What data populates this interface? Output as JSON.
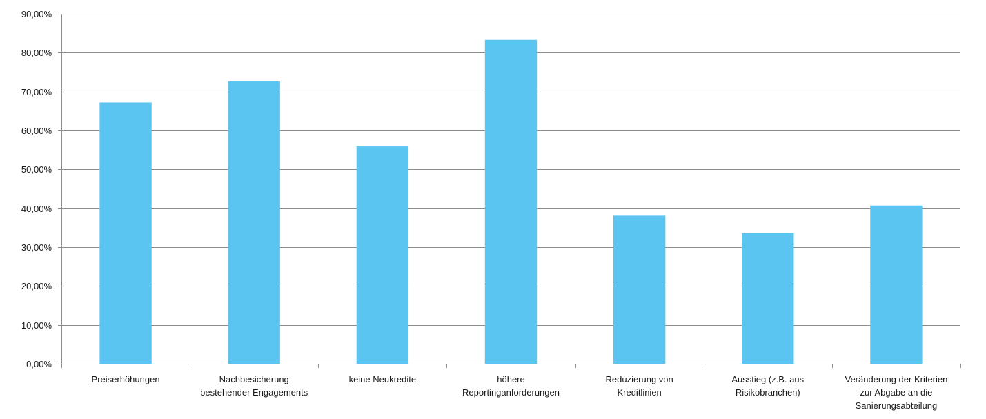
{
  "chart_data": {
    "type": "bar",
    "categories": [
      "Preiserhöhungen",
      "Nachbesicherung bestehender Engagements",
      "keine Neukredite",
      "höhere Reportinganforderungen",
      "Reduzierung von Kreditlinien",
      "Ausstieg (z.B. aus Risikobranchen)",
      "Veränderung der Kriterien zur Abgabe an die Sanierungsabteilung"
    ],
    "category_lines": [
      [
        "Preiserhöhungen"
      ],
      [
        "Nachbesicherung",
        "bestehender Engagements"
      ],
      [
        "keine Neukredite"
      ],
      [
        "höhere",
        "Reportinganforderungen"
      ],
      [
        "Reduzierung von",
        "Kreditlinien"
      ],
      [
        "Ausstieg (z.B. aus",
        "Risikobranchen)"
      ],
      [
        "Veränderung der Kriterien",
        "zur Abgabe an die",
        "Sanierungsabteilung"
      ]
    ],
    "values": [
      67.2,
      72.6,
      55.9,
      83.3,
      38.1,
      33.6,
      40.7
    ],
    "ylim": [
      0,
      90
    ],
    "yticks": [
      0,
      10,
      20,
      30,
      40,
      50,
      60,
      70,
      80,
      90
    ],
    "ytick_labels": [
      "0,00%",
      "10,00%",
      "20,00%",
      "30,00%",
      "40,00%",
      "50,00%",
      "60,00%",
      "70,00%",
      "80,00%",
      "90,00%"
    ],
    "title": "",
    "xlabel": "",
    "ylabel": "",
    "grid": true,
    "bar_color": "#5BC5F2",
    "grid_color": "#8c8c8c",
    "axis_color": "#8c8c8c"
  }
}
